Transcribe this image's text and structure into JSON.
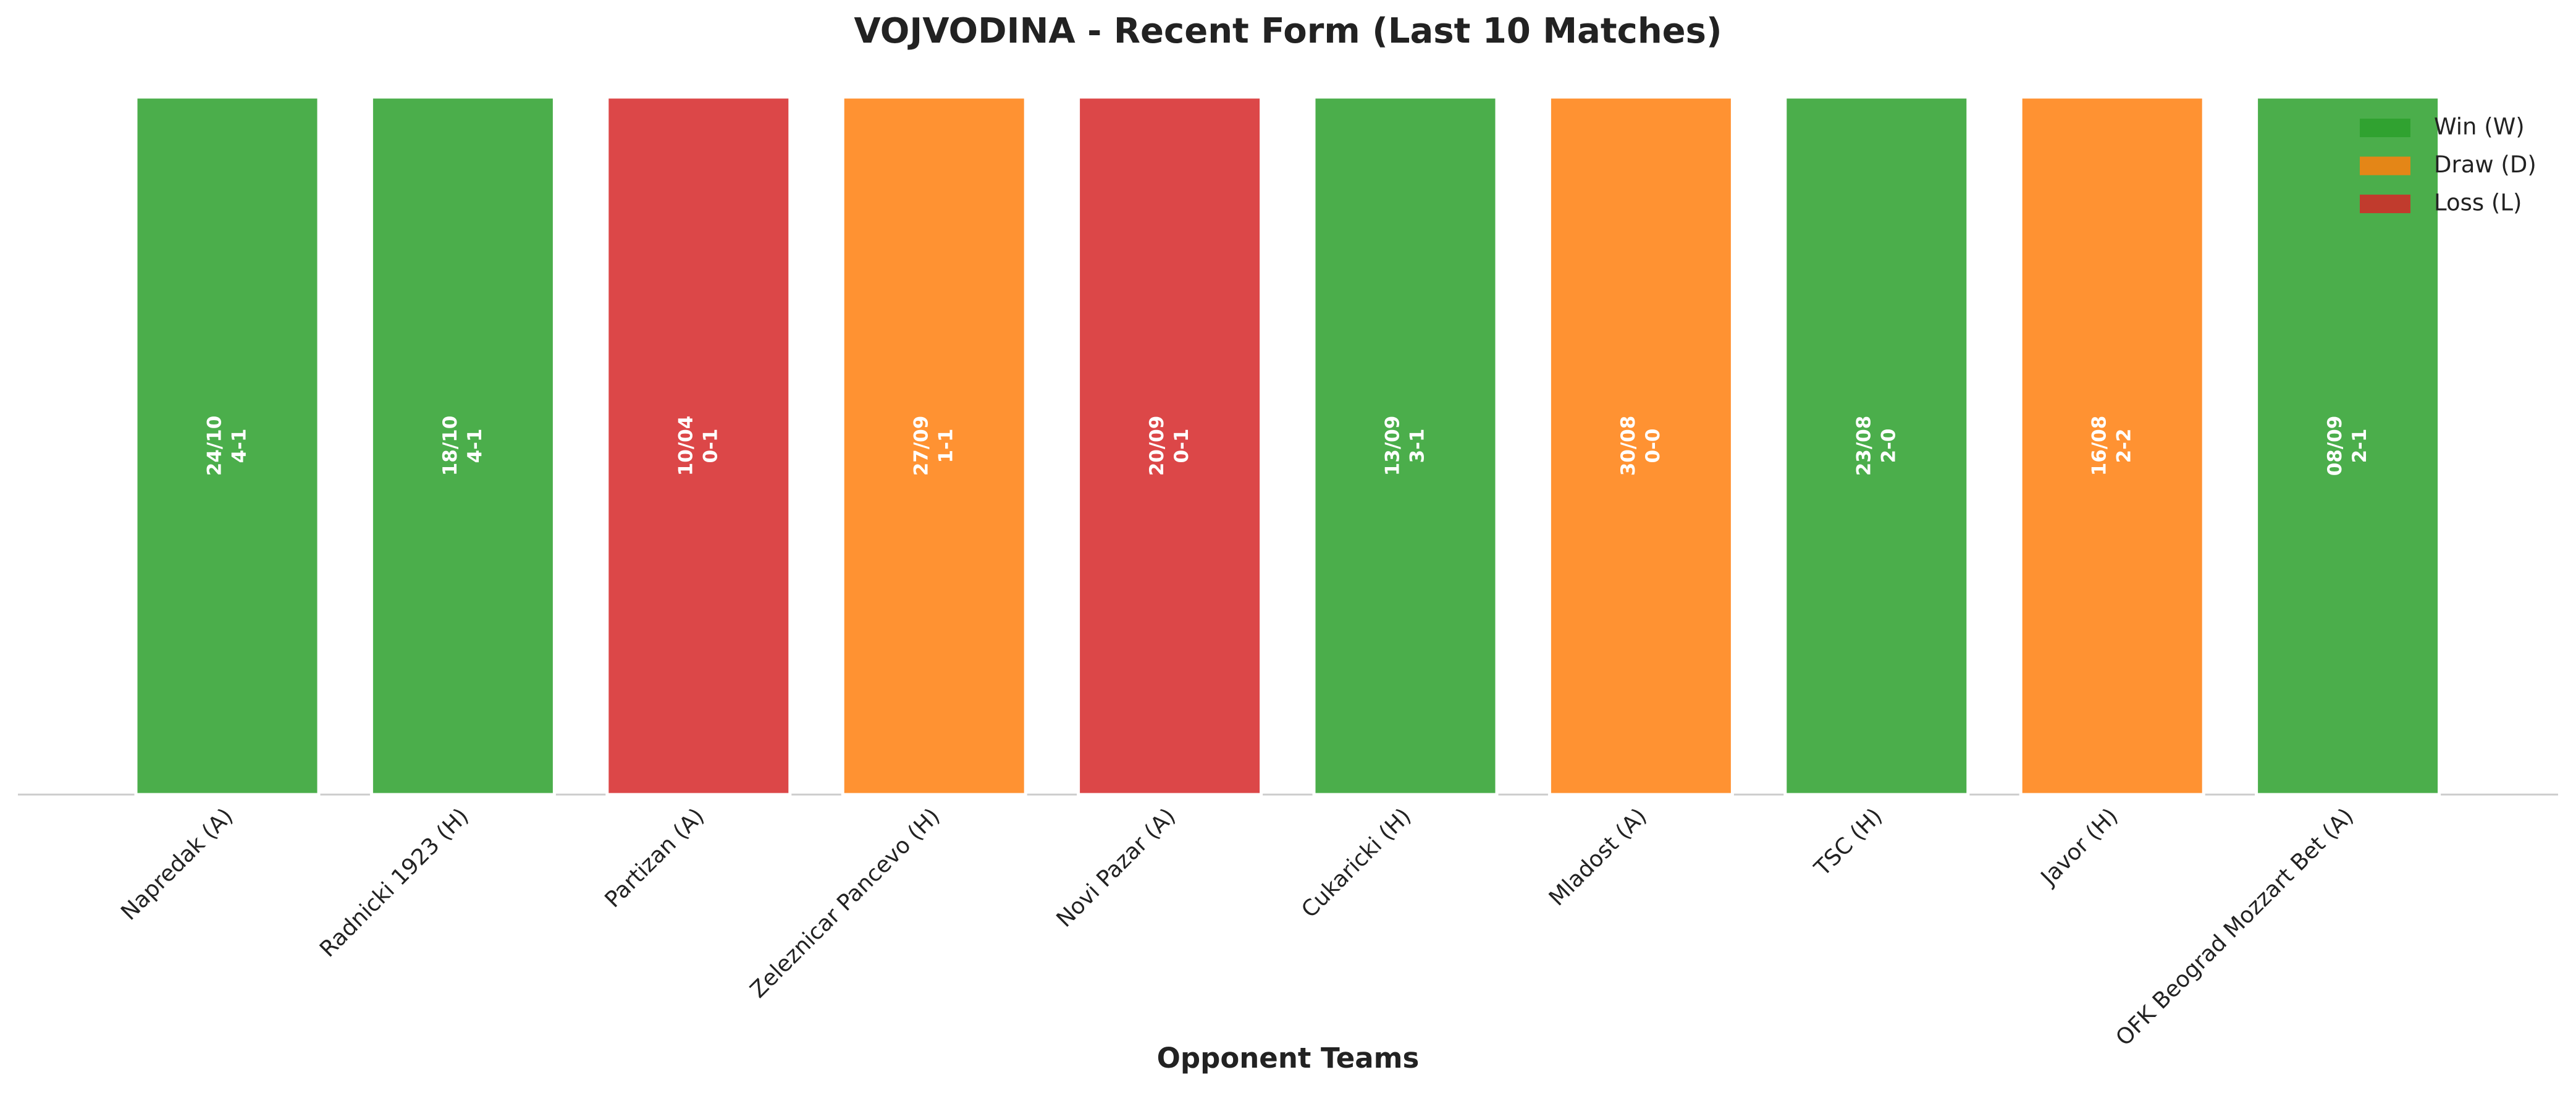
{
  "chart_data": {
    "type": "bar",
    "title": "VOJVODINA - Recent Form (Last 10 Matches)",
    "x_label": "Opponent Teams",
    "categories": [
      "Napredak (A)",
      "Radnicki 1923 (H)",
      "Partizan (A)",
      "Zeleznicar Pancevo (H)",
      "Novi Pazar (A)",
      "Cukaricki (H)",
      "Mladost (A)",
      "TSC (H)",
      "Javor (H)",
      "OFK Beograd Mozzart Bet (A)"
    ],
    "dates": [
      "24/10",
      "18/10",
      "10/04",
      "27/09",
      "20/09",
      "13/09",
      "30/08",
      "23/08",
      "16/08",
      "08/09"
    ],
    "scores": [
      "4-1",
      "4-1",
      "0-1",
      "1-1",
      "0-1",
      "3-1",
      "0-0",
      "2-0",
      "2-2",
      "2-1"
    ],
    "series": [
      {
        "name": "Win (W)",
        "color": "#2ca02c",
        "values": [
          1,
          1,
          null,
          null,
          null,
          1,
          null,
          1,
          null,
          1
        ]
      },
      {
        "name": "Draw (D)",
        "color": "#ff7f0e",
        "values": [
          null,
          null,
          null,
          1,
          null,
          null,
          1,
          null,
          1,
          null
        ]
      },
      {
        "name": "Loss (L)",
        "color": "#d62728",
        "values": [
          null,
          null,
          1,
          null,
          1,
          null,
          null,
          null,
          null,
          null
        ]
      }
    ],
    "ylim": [
      0,
      1
    ],
    "legend": "upper right"
  }
}
